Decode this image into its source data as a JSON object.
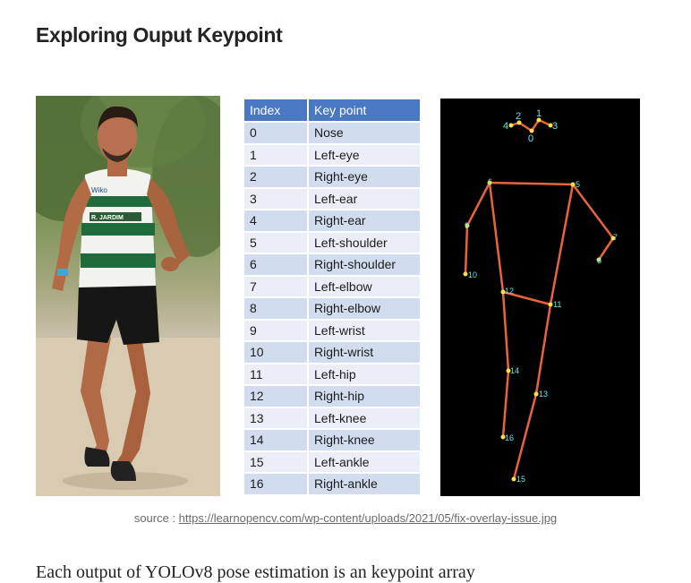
{
  "title": "Exploring Ouput Keypoint",
  "photo": {
    "jersey_text": "Wiko",
    "shorts_badge": "R. JARDIM"
  },
  "table": {
    "headers": [
      "Index",
      "Key point"
    ],
    "rows": [
      {
        "index": "0",
        "name": "Nose"
      },
      {
        "index": "1",
        "name": "Left-eye"
      },
      {
        "index": "2",
        "name": "Right-eye"
      },
      {
        "index": "3",
        "name": "Left-ear"
      },
      {
        "index": "4",
        "name": "Right-ear"
      },
      {
        "index": "5",
        "name": "Left-shoulder"
      },
      {
        "index": "6",
        "name": "Right-shoulder"
      },
      {
        "index": "7",
        "name": "Left-elbow"
      },
      {
        "index": "8",
        "name": "Right-elbow"
      },
      {
        "index": "9",
        "name": "Left-wrist"
      },
      {
        "index": "10",
        "name": "Right-wrist"
      },
      {
        "index": "11",
        "name": "Left-hip"
      },
      {
        "index": "12",
        "name": "Right-hip"
      },
      {
        "index": "13",
        "name": "Left-knee"
      },
      {
        "index": "14",
        "name": "Right-knee"
      },
      {
        "index": "15",
        "name": "Left-ankle"
      },
      {
        "index": "16",
        "name": "Right-ankle"
      }
    ]
  },
  "skeleton": {
    "line_color": "#e8643c",
    "point_color": "#ffe14a",
    "label_color": "#66e3e0",
    "point_labels": [
      "0",
      "1",
      "2",
      "3",
      "4",
      "5",
      "6",
      "7",
      "8",
      "9",
      "10",
      "11",
      "12",
      "13",
      "14",
      "15",
      "16"
    ]
  },
  "caption": {
    "prefix": "source : ",
    "link_text": "https://learnopencv.com/wp-content/uploads/2021/05/fix-overlay-issue.jpg"
  },
  "next_paragraph": "Each output of YOLOv8 pose estimation is an keypoint array"
}
